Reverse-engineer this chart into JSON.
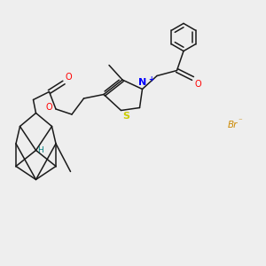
{
  "bg_color": "#eeeeee",
  "bond_color": "#1a1a1a",
  "N_color": "#0000ff",
  "S_color": "#cccc00",
  "O_color": "#ff0000",
  "H_color": "#008080",
  "Br_color": "#cc8800",
  "plus_color": "#0000ff",
  "line_width": 1.1,
  "font_size": 7.0,
  "br_label": "Br",
  "minus_label": "⁻",
  "N_label": "N",
  "S_label": "S",
  "O_label": "O",
  "H_label": "H",
  "plus_label": "+"
}
